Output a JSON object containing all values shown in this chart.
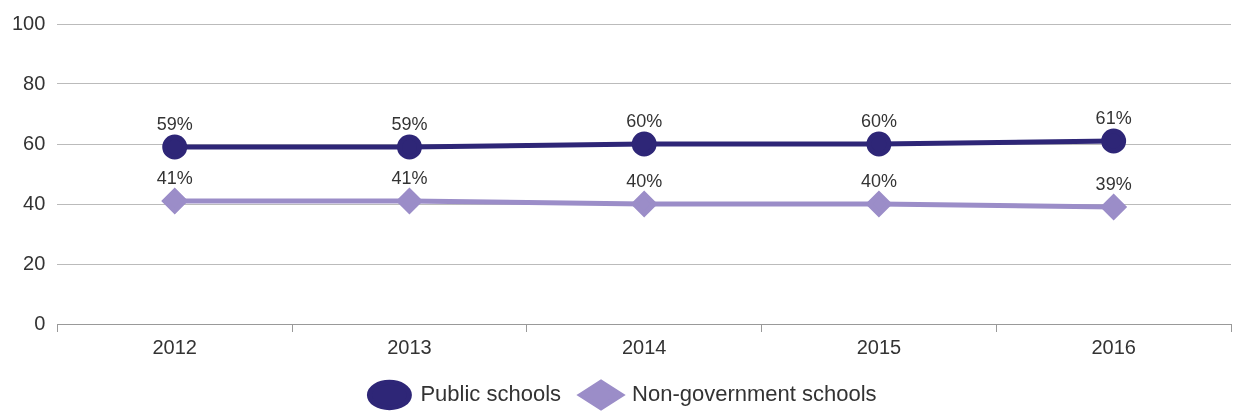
{
  "chart_data": {
    "type": "line",
    "categories": [
      "2012",
      "2013",
      "2014",
      "2015",
      "2016"
    ],
    "series": [
      {
        "name": "Public schools",
        "color": "#2e2677",
        "marker": "circle",
        "values": [
          59,
          59,
          60,
          60,
          61
        ],
        "value_labels": [
          "59%",
          "59%",
          "60%",
          "60%",
          "61%"
        ]
      },
      {
        "name": "Non-government schools",
        "color": "#9b8dc8",
        "marker": "diamond",
        "values": [
          41,
          41,
          40,
          40,
          39
        ],
        "value_labels": [
          "41%",
          "41%",
          "40%",
          "40%",
          "39%"
        ]
      }
    ],
    "ylim": [
      0,
      100
    ],
    "yticks": [
      0,
      20,
      40,
      60,
      80,
      100
    ],
    "grid": "y",
    "legend": "bottom",
    "line_style": "solid"
  }
}
